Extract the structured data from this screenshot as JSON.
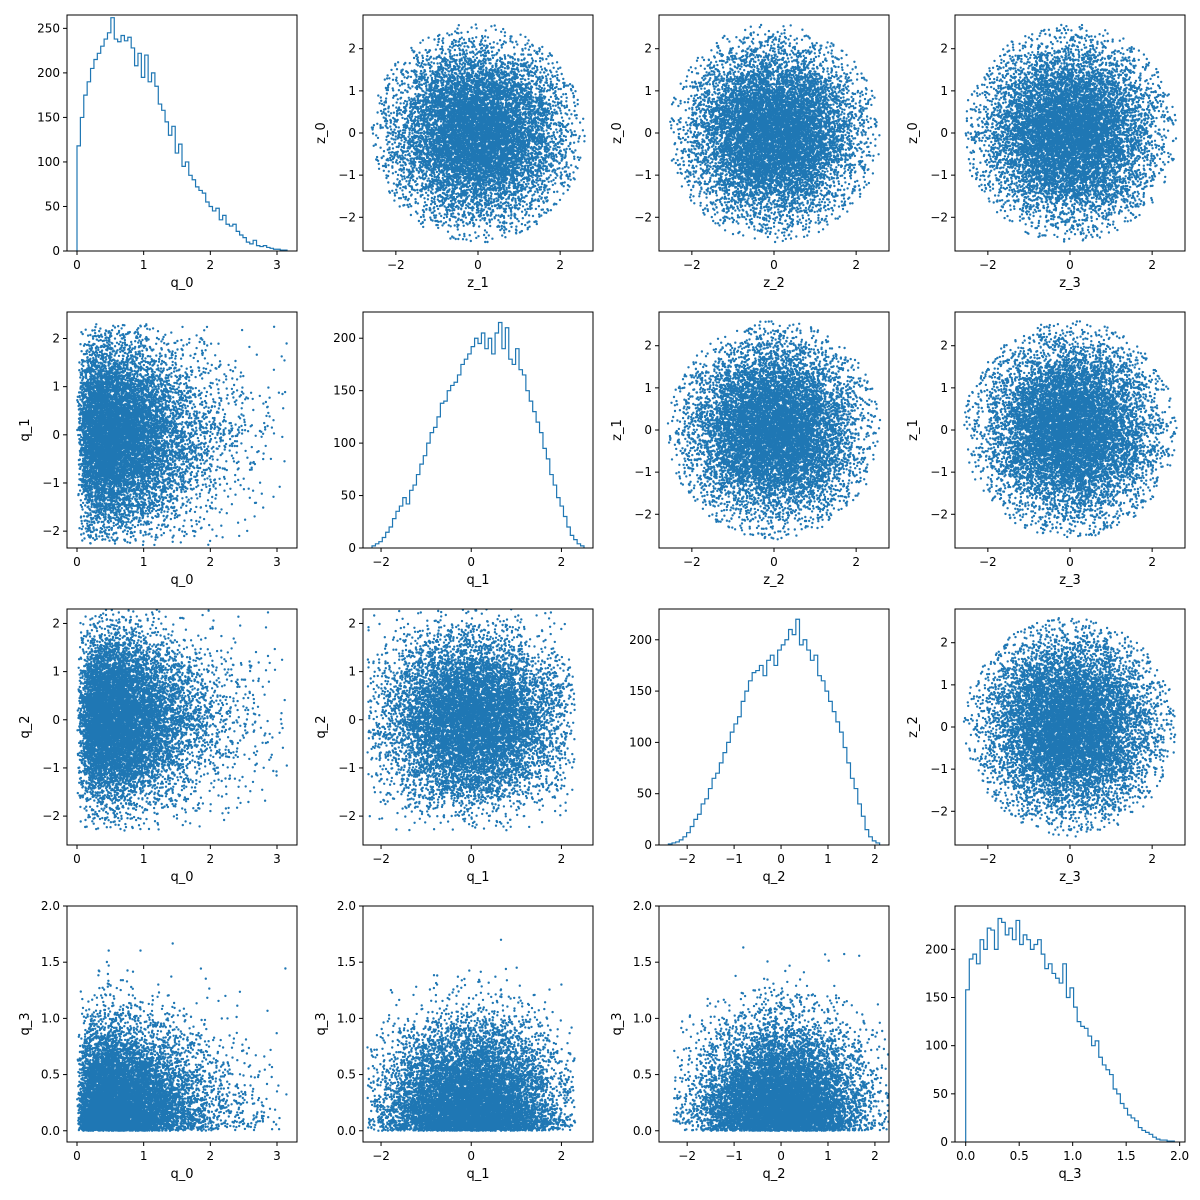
{
  "figure": {
    "background": "#ffffff",
    "series_color": "#1f77b4",
    "axis_color": "#000000"
  },
  "chart_data": [
    {
      "type": "histogram",
      "row": 0,
      "col": 0,
      "xlabel": "q_0",
      "ylabel": "",
      "xlim": [
        -0.15,
        3.3
      ],
      "ylim": [
        0,
        265
      ],
      "xticks": [
        0,
        1,
        2,
        3
      ],
      "yticks": [
        0,
        50,
        100,
        150,
        200,
        250
      ],
      "bin_range": [
        0,
        3.15
      ],
      "counts": [
        118,
        150,
        175,
        190,
        205,
        215,
        222,
        230,
        238,
        245,
        262,
        238,
        235,
        242,
        236,
        240,
        228,
        208,
        222,
        195,
        220,
        190,
        200,
        185,
        165,
        158,
        145,
        130,
        140,
        110,
        120,
        95,
        100,
        85,
        80,
        72,
        68,
        65,
        55,
        50,
        45,
        48,
        35,
        40,
        30,
        28,
        30,
        22,
        18,
        15,
        10,
        8,
        12,
        6,
        5,
        6,
        4,
        3,
        2,
        2,
        1,
        1
      ]
    },
    {
      "type": "scatter",
      "row": 0,
      "col": 1,
      "xlabel": "z_1",
      "ylabel": "z_0",
      "xlim": [
        -2.8,
        2.8
      ],
      "ylim": [
        -2.8,
        2.8
      ],
      "xticks": [
        -2,
        0,
        2
      ],
      "yticks": [
        -2,
        -1,
        0,
        1,
        2
      ],
      "distribution": {
        "x": {
          "kind": "normal",
          "mean": 0,
          "std": 1,
          "clip": 2.6
        },
        "y": {
          "kind": "normal",
          "mean": 0,
          "std": 1,
          "clip": 2.6
        },
        "mask": "disk",
        "radius": 2.6,
        "n": 10000
      }
    },
    {
      "type": "scatter",
      "row": 0,
      "col": 2,
      "xlabel": "z_2",
      "ylabel": "z_0",
      "xlim": [
        -2.8,
        2.8
      ],
      "ylim": [
        -2.8,
        2.8
      ],
      "xticks": [
        -2,
        0,
        2
      ],
      "yticks": [
        -2,
        -1,
        0,
        1,
        2
      ],
      "distribution": {
        "x": {
          "kind": "normal",
          "mean": 0,
          "std": 1,
          "clip": 2.6
        },
        "y": {
          "kind": "normal",
          "mean": 0,
          "std": 1,
          "clip": 2.6
        },
        "mask": "disk",
        "radius": 2.6,
        "n": 10000
      }
    },
    {
      "type": "scatter",
      "row": 0,
      "col": 3,
      "xlabel": "z_3",
      "ylabel": "z_0",
      "xlim": [
        -2.8,
        2.8
      ],
      "ylim": [
        -2.8,
        2.8
      ],
      "xticks": [
        -2,
        0,
        2
      ],
      "yticks": [
        -2,
        -1,
        0,
        1,
        2
      ],
      "distribution": {
        "x": {
          "kind": "normal",
          "mean": 0,
          "std": 1,
          "clip": 2.6
        },
        "y": {
          "kind": "normal",
          "mean": 0,
          "std": 1,
          "clip": 2.6
        },
        "mask": "disk",
        "radius": 2.6,
        "n": 10000
      }
    },
    {
      "type": "scatter",
      "row": 1,
      "col": 0,
      "xlabel": "q_0",
      "ylabel": "q_1",
      "xlim": [
        -0.15,
        3.3
      ],
      "ylim": [
        -2.35,
        2.55
      ],
      "xticks": [
        0,
        1,
        2,
        3
      ],
      "yticks": [
        -2,
        -1,
        0,
        1,
        2
      ],
      "distribution": {
        "x": {
          "kind": "gamma",
          "shape": 2.2,
          "scale": 0.36,
          "clip": 3.15
        },
        "y": {
          "kind": "normal",
          "mean": 0,
          "std": 0.95,
          "clip": 2.3
        },
        "n": 10000
      }
    },
    {
      "type": "histogram",
      "row": 1,
      "col": 1,
      "xlabel": "q_1",
      "ylabel": "",
      "xlim": [
        -2.4,
        2.7
      ],
      "ylim": [
        0,
        225
      ],
      "xticks": [
        -2,
        0,
        2
      ],
      "yticks": [
        0,
        50,
        100,
        150,
        200
      ],
      "bin_range": [
        -2.2,
        2.5
      ],
      "counts": [
        2,
        4,
        6,
        10,
        15,
        20,
        28,
        35,
        40,
        48,
        42,
        55,
        60,
        70,
        80,
        88,
        100,
        110,
        115,
        125,
        138,
        140,
        150,
        155,
        158,
        165,
        175,
        180,
        185,
        192,
        200,
        195,
        205,
        190,
        200,
        185,
        205,
        215,
        190,
        210,
        180,
        175,
        190,
        170,
        165,
        150,
        140,
        130,
        120,
        110,
        95,
        85,
        70,
        60,
        48,
        40,
        30,
        20,
        12,
        8,
        4,
        2
      ]
    },
    {
      "type": "scatter",
      "row": 1,
      "col": 2,
      "xlabel": "z_2",
      "ylabel": "z_1",
      "xlim": [
        -2.8,
        2.8
      ],
      "ylim": [
        -2.8,
        2.8
      ],
      "xticks": [
        -2,
        0,
        2
      ],
      "yticks": [
        -2,
        -1,
        0,
        1,
        2
      ],
      "distribution": {
        "x": {
          "kind": "normal",
          "mean": 0,
          "std": 1,
          "clip": 2.6
        },
        "y": {
          "kind": "normal",
          "mean": 0,
          "std": 1,
          "clip": 2.6
        },
        "mask": "disk",
        "radius": 2.6,
        "n": 10000
      }
    },
    {
      "type": "scatter",
      "row": 1,
      "col": 3,
      "xlabel": "z_3",
      "ylabel": "z_1",
      "xlim": [
        -2.8,
        2.8
      ],
      "ylim": [
        -2.8,
        2.8
      ],
      "xticks": [
        -2,
        0,
        2
      ],
      "yticks": [
        -2,
        -1,
        0,
        1,
        2
      ],
      "distribution": {
        "x": {
          "kind": "normal",
          "mean": 0,
          "std": 1,
          "clip": 2.6
        },
        "y": {
          "kind": "normal",
          "mean": 0,
          "std": 1,
          "clip": 2.6
        },
        "mask": "disk",
        "radius": 2.6,
        "n": 10000
      }
    },
    {
      "type": "scatter",
      "row": 2,
      "col": 0,
      "xlabel": "q_0",
      "ylabel": "q_2",
      "xlim": [
        -0.15,
        3.3
      ],
      "ylim": [
        -2.6,
        2.3
      ],
      "xticks": [
        0,
        1,
        2,
        3
      ],
      "yticks": [
        -2,
        -1,
        0,
        1,
        2
      ],
      "distribution": {
        "x": {
          "kind": "gamma",
          "shape": 2.2,
          "scale": 0.36,
          "clip": 3.15
        },
        "y": {
          "kind": "normal",
          "mean": 0,
          "std": 0.85,
          "clip": 2.3
        },
        "n": 10000
      }
    },
    {
      "type": "scatter",
      "row": 2,
      "col": 1,
      "xlabel": "q_1",
      "ylabel": "q_2",
      "xlim": [
        -2.4,
        2.7
      ],
      "ylim": [
        -2.6,
        2.3
      ],
      "xticks": [
        -2,
        0,
        2
      ],
      "yticks": [
        -2,
        -1,
        0,
        1,
        2
      ],
      "distribution": {
        "x": {
          "kind": "normal",
          "mean": 0,
          "std": 0.95,
          "clip": 2.3
        },
        "y": {
          "kind": "normal",
          "mean": 0,
          "std": 0.85,
          "clip": 2.3
        },
        "n": 10000
      }
    },
    {
      "type": "histogram",
      "row": 2,
      "col": 2,
      "xlabel": "q_2",
      "ylabel": "",
      "xlim": [
        -2.6,
        2.3
      ],
      "ylim": [
        0,
        230
      ],
      "xticks": [
        -2,
        -1,
        0,
        1,
        2
      ],
      "yticks": [
        0,
        50,
        100,
        150,
        200
      ],
      "bin_range": [
        -2.4,
        2.1
      ],
      "counts": [
        1,
        2,
        3,
        5,
        8,
        12,
        18,
        25,
        30,
        40,
        45,
        55,
        65,
        70,
        80,
        90,
        100,
        110,
        118,
        125,
        140,
        150,
        160,
        168,
        170,
        175,
        165,
        180,
        185,
        175,
        190,
        195,
        200,
        210,
        205,
        220,
        195,
        200,
        190,
        180,
        185,
        165,
        160,
        150,
        140,
        130,
        120,
        110,
        95,
        80,
        65,
        55,
        40,
        28,
        15,
        8,
        4,
        2
      ]
    },
    {
      "type": "scatter",
      "row": 2,
      "col": 3,
      "xlabel": "z_3",
      "ylabel": "z_2",
      "xlim": [
        -2.8,
        2.8
      ],
      "ylim": [
        -2.8,
        2.8
      ],
      "xticks": [
        -2,
        0,
        2
      ],
      "yticks": [
        -2,
        -1,
        0,
        1,
        2
      ],
      "distribution": {
        "x": {
          "kind": "normal",
          "mean": 0,
          "std": 1,
          "clip": 2.6
        },
        "y": {
          "kind": "normal",
          "mean": 0,
          "std": 1,
          "clip": 2.6
        },
        "mask": "disk",
        "radius": 2.6,
        "n": 10000
      }
    },
    {
      "type": "scatter",
      "row": 3,
      "col": 0,
      "xlabel": "q_0",
      "ylabel": "q_3",
      "xlim": [
        -0.15,
        3.3
      ],
      "ylim": [
        -0.1,
        2.0
      ],
      "xticks": [
        0,
        1,
        2,
        3
      ],
      "yticks": [
        0.0,
        0.5,
        1.0,
        1.5,
        2.0
      ],
      "distribution": {
        "x": {
          "kind": "gamma",
          "shape": 2.2,
          "scale": 0.36,
          "clip": 3.15
        },
        "y": {
          "kind": "halfnormal",
          "std": 0.42,
          "clip": 1.9
        },
        "n": 10000
      }
    },
    {
      "type": "scatter",
      "row": 3,
      "col": 1,
      "xlabel": "q_1",
      "ylabel": "q_3",
      "xlim": [
        -2.4,
        2.7
      ],
      "ylim": [
        -0.1,
        2.0
      ],
      "xticks": [
        -2,
        0,
        2
      ],
      "yticks": [
        0.0,
        0.5,
        1.0,
        1.5,
        2.0
      ],
      "distribution": {
        "x": {
          "kind": "normal",
          "mean": 0,
          "std": 0.95,
          "clip": 2.3
        },
        "y": {
          "kind": "halfnormal",
          "std": 0.42,
          "clip": 1.9
        },
        "n": 10000
      }
    },
    {
      "type": "scatter",
      "row": 3,
      "col": 2,
      "xlabel": "q_2",
      "ylabel": "q_3",
      "xlim": [
        -2.6,
        2.3
      ],
      "ylim": [
        -0.1,
        2.0
      ],
      "xticks": [
        -2,
        -1,
        0,
        1,
        2
      ],
      "yticks": [
        0.0,
        0.5,
        1.0,
        1.5,
        2.0
      ],
      "distribution": {
        "x": {
          "kind": "normal",
          "mean": 0,
          "std": 0.85,
          "clip": 2.3
        },
        "y": {
          "kind": "halfnormal",
          "std": 0.42,
          "clip": 1.9
        },
        "n": 10000
      }
    },
    {
      "type": "histogram",
      "row": 3,
      "col": 3,
      "xlabel": "q_3",
      "ylabel": "",
      "xlim": [
        -0.1,
        2.05
      ],
      "ylim": [
        0,
        245
      ],
      "xticks": [
        0.0,
        0.5,
        1.0,
        1.5,
        2.0
      ],
      "yticks": [
        0,
        50,
        100,
        150,
        200
      ],
      "bin_range": [
        0,
        1.95
      ],
      "counts": [
        158,
        190,
        195,
        185,
        210,
        200,
        222,
        220,
        200,
        232,
        228,
        215,
        222,
        210,
        230,
        205,
        215,
        210,
        200,
        205,
        210,
        195,
        180,
        185,
        175,
        170,
        165,
        185,
        150,
        160,
        140,
        125,
        120,
        118,
        110,
        100,
        105,
        88,
        80,
        75,
        70,
        55,
        50,
        40,
        35,
        28,
        25,
        22,
        15,
        12,
        10,
        8,
        5,
        3,
        2,
        2,
        1,
        1
      ]
    }
  ]
}
